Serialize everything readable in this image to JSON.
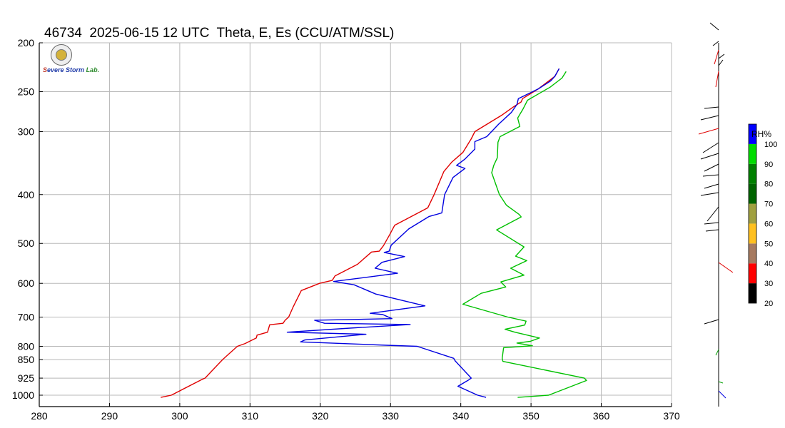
{
  "title": "46734  2025-06-15 12 UTC  Theta, E, Es (CCU/ATM/SSL)",
  "logo": {
    "alt_text": "Severe Storm Lab."
  },
  "chart_data": {
    "type": "line",
    "title": "46734  2025-06-15 12 UTC  Theta, E, Es (CCU/ATM/SSL)",
    "xlabel": "",
    "ylabel": "",
    "xlim": [
      280,
      370
    ],
    "ylim": [
      1000,
      200
    ],
    "y_scale": "log-pressure",
    "grid": true,
    "xticks": [
      "280",
      "290",
      "300",
      "310",
      "320",
      "330",
      "340",
      "350",
      "360",
      "370"
    ],
    "yticks": [
      "200",
      "250",
      "300",
      "400",
      "500",
      "600",
      "700",
      "800",
      "850",
      "925",
      "1000"
    ],
    "series": [
      {
        "color": "#e00000",
        "points": [
          [
            297.3,
            1010
          ],
          [
            298.8,
            1000
          ],
          [
            303.2,
            930
          ],
          [
            303.6,
            925
          ],
          [
            306.1,
            850
          ],
          [
            306.5,
            840
          ],
          [
            308.2,
            800
          ],
          [
            309.3,
            790
          ],
          [
            310.9,
            770
          ],
          [
            311.0,
            760
          ],
          [
            312.5,
            750
          ],
          [
            312.8,
            725
          ],
          [
            314.7,
            720
          ],
          [
            315.0,
            710
          ],
          [
            315.5,
            700
          ],
          [
            316.1,
            670
          ],
          [
            317.3,
            620
          ],
          [
            319.9,
            600
          ],
          [
            321.7,
            592
          ],
          [
            322.1,
            580
          ],
          [
            325.3,
            550
          ],
          [
            327.3,
            520
          ],
          [
            328.4,
            518
          ],
          [
            329.0,
            505
          ],
          [
            329.9,
            480
          ],
          [
            330.6,
            460
          ],
          [
            335.3,
            425
          ],
          [
            336.2,
            400
          ],
          [
            337.6,
            360
          ],
          [
            338.7,
            345
          ],
          [
            340.3,
            330
          ],
          [
            341.5,
            310
          ],
          [
            342.0,
            300
          ],
          [
            345.9,
            278
          ],
          [
            347.5,
            268
          ],
          [
            348.6,
            262
          ],
          [
            348.8,
            258
          ],
          [
            351.0,
            247
          ],
          [
            353.4,
            233
          ],
          [
            354.0,
            225
          ]
        ]
      },
      {
        "color": "#0000e0",
        "points": [
          [
            343.6,
            1010
          ],
          [
            342.4,
            1000
          ],
          [
            339.6,
            960
          ],
          [
            341.0,
            935
          ],
          [
            341.5,
            925
          ],
          [
            339.2,
            855
          ],
          [
            339.0,
            845
          ],
          [
            333.8,
            800
          ],
          [
            329.4,
            796
          ],
          [
            317.2,
            784
          ],
          [
            317.8,
            777
          ],
          [
            326.5,
            757
          ],
          [
            315.3,
            750
          ],
          [
            325.0,
            735
          ],
          [
            332.8,
            724
          ],
          [
            320.6,
            720
          ],
          [
            319.2,
            710
          ],
          [
            330.2,
            705
          ],
          [
            328.9,
            692
          ],
          [
            327.1,
            688
          ],
          [
            334.9,
            665
          ],
          [
            327.9,
            630
          ],
          [
            324.8,
            604
          ],
          [
            321.9,
            595
          ],
          [
            331.0,
            573
          ],
          [
            327.8,
            560
          ],
          [
            328.8,
            545
          ],
          [
            332.0,
            531
          ],
          [
            329.1,
            521
          ],
          [
            329.8,
            518
          ],
          [
            330.1,
            504
          ],
          [
            332.6,
            468
          ],
          [
            335.5,
            442
          ],
          [
            337.3,
            435
          ],
          [
            337.7,
            400
          ],
          [
            338.9,
            370
          ],
          [
            340.6,
            355
          ],
          [
            339.4,
            350
          ],
          [
            340.6,
            340
          ],
          [
            342.0,
            325
          ],
          [
            342.0,
            314
          ],
          [
            343.7,
            307
          ],
          [
            345.4,
            290
          ],
          [
            347.2,
            275
          ],
          [
            348.0,
            265
          ],
          [
            348.2,
            258
          ],
          [
            351.0,
            247
          ],
          [
            352.8,
            238
          ],
          [
            353.4,
            233
          ],
          [
            354.0,
            225
          ]
        ]
      },
      {
        "color": "#00c000",
        "points": [
          [
            348.1,
            1010
          ],
          [
            352.5,
            1000
          ],
          [
            357.9,
            935
          ],
          [
            357.6,
            925
          ],
          [
            346.0,
            857
          ],
          [
            345.9,
            845
          ],
          [
            346.1,
            805
          ],
          [
            350.2,
            798
          ],
          [
            348.0,
            788
          ],
          [
            349.9,
            782
          ],
          [
            351.2,
            770
          ],
          [
            347.7,
            750
          ],
          [
            346.3,
            740
          ],
          [
            349.1,
            726
          ],
          [
            349.3,
            713
          ],
          [
            346.7,
            700
          ],
          [
            340.3,
            660
          ],
          [
            342.9,
            628
          ],
          [
            346.4,
            610
          ],
          [
            345.7,
            596
          ],
          [
            349.0,
            578
          ],
          [
            347.1,
            560
          ],
          [
            349.4,
            541
          ],
          [
            347.8,
            530
          ],
          [
            349.0,
            508
          ],
          [
            345.1,
            470
          ],
          [
            348.6,
            443
          ],
          [
            348.3,
            438
          ],
          [
            346.5,
            420
          ],
          [
            345.5,
            400
          ],
          [
            344.4,
            362
          ],
          [
            344.7,
            350
          ],
          [
            345.2,
            338
          ],
          [
            345.3,
            315
          ],
          [
            345.6,
            307
          ],
          [
            348.4,
            293
          ],
          [
            348.1,
            282
          ],
          [
            348.9,
            270
          ],
          [
            349.5,
            260
          ],
          [
            352.7,
            245
          ],
          [
            354.4,
            235
          ],
          [
            355.0,
            228
          ]
        ]
      }
    ]
  },
  "colorbar": {
    "label": "RH%",
    "ticks": [
      "20",
      "30",
      "40",
      "50",
      "60",
      "70",
      "80",
      "90",
      "100"
    ],
    "colors": [
      "#000000",
      "#ff0000",
      "#a67a60",
      "#ffc020",
      "#a0a040",
      "#006400",
      "#008000",
      "#00dd00",
      "#0000ff"
    ]
  },
  "wind_profile": {
    "axis_color": "#000000"
  }
}
